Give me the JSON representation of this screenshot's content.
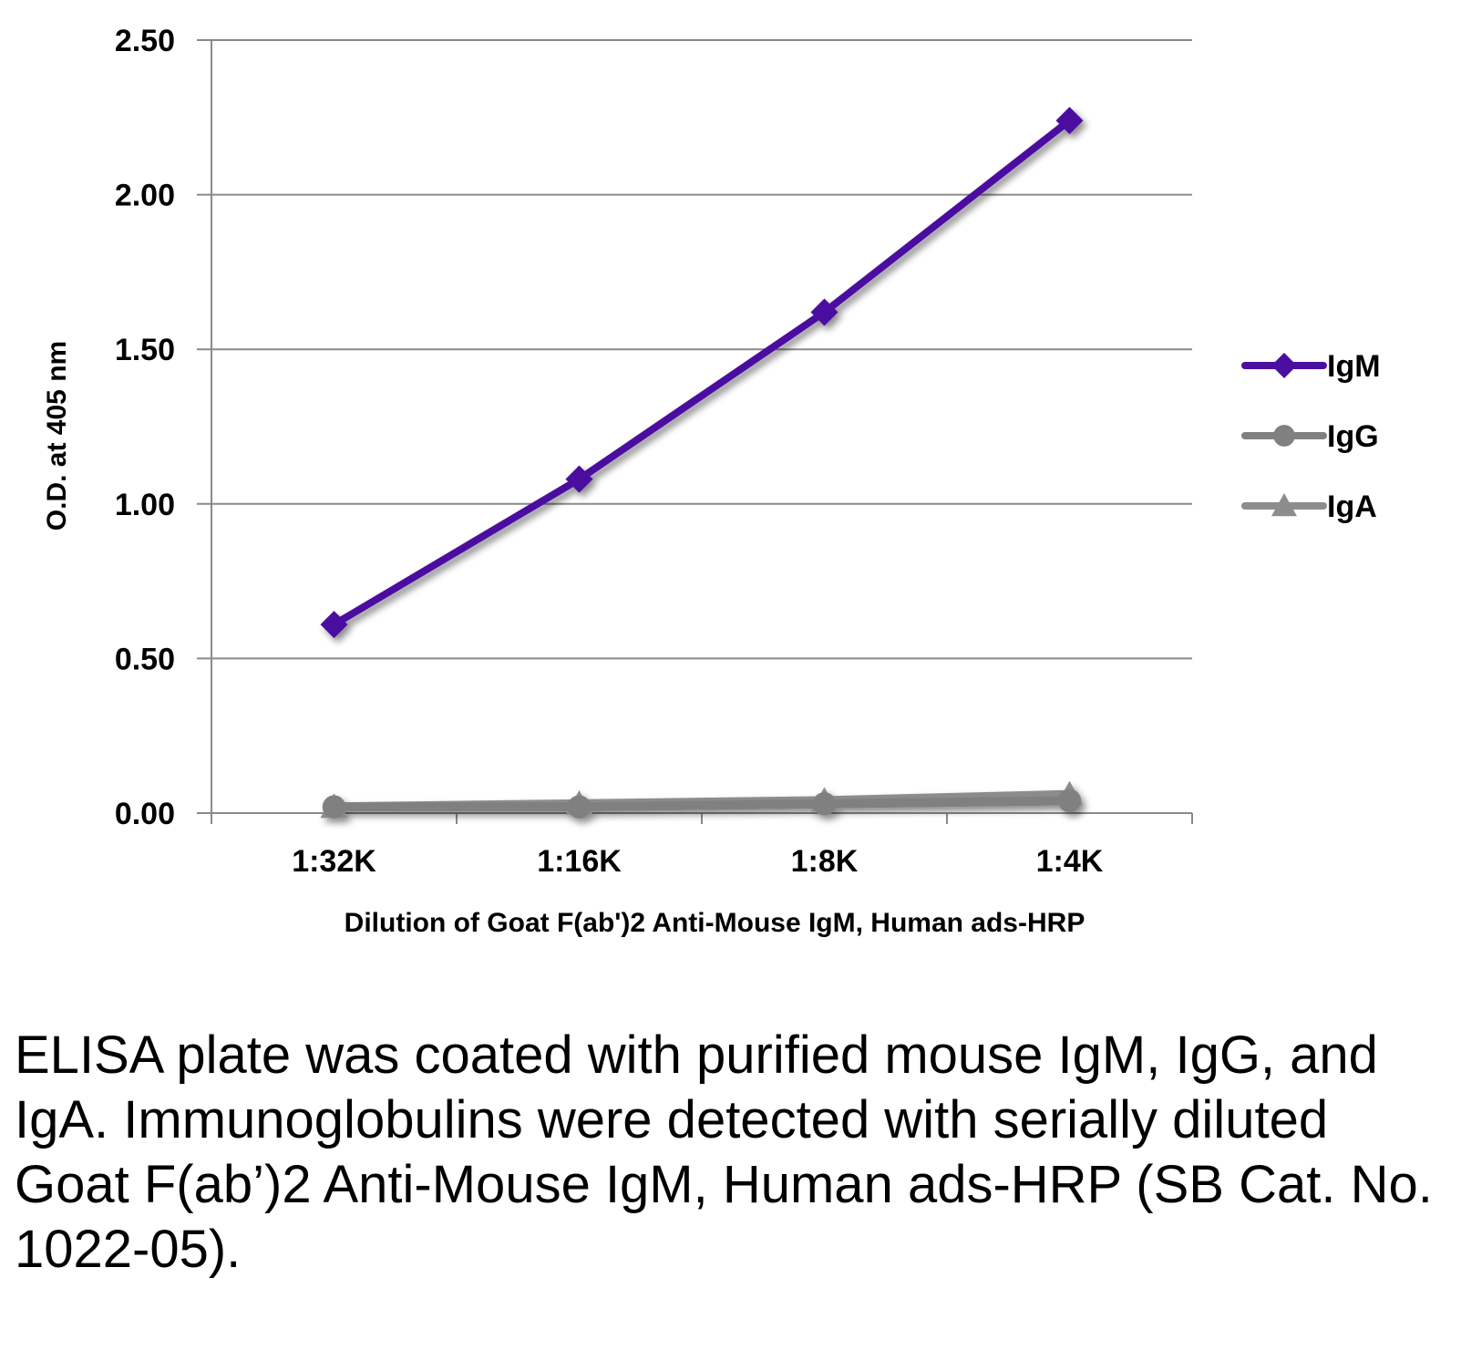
{
  "chart_data": {
    "type": "line",
    "title": "",
    "xlabel": "Dilution of Goat F(ab')2 Anti-Mouse IgM, Human ads-HRP",
    "ylabel": "O.D. at 405 nm",
    "categories": [
      "1:32K",
      "1:16K",
      "1:8K",
      "1:4K"
    ],
    "ylim": [
      0,
      2.5
    ],
    "yticks": [
      "0.00",
      "0.50",
      "1.00",
      "1.50",
      "2.00",
      "2.50"
    ],
    "grid": true,
    "legend_position": "right",
    "series": [
      {
        "name": "IgM",
        "values": [
          0.61,
          1.08,
          1.62,
          2.24
        ],
        "color": "#4b0fa0",
        "marker": "diamond"
      },
      {
        "name": "IgG",
        "values": [
          0.02,
          0.02,
          0.03,
          0.04
        ],
        "color": "#808080",
        "marker": "circle"
      },
      {
        "name": "IgA",
        "values": [
          0.02,
          0.03,
          0.04,
          0.06
        ],
        "color": "#8c8c8c",
        "marker": "triangle"
      }
    ]
  },
  "caption": "ELISA plate was coated with purified mouse IgM, IgG, and IgA.  Immunoglobulins were detected with serially diluted Goat F(ab’)2 Anti-Mouse IgM, Human ads-HRP (SB Cat. No. 1022-05)."
}
